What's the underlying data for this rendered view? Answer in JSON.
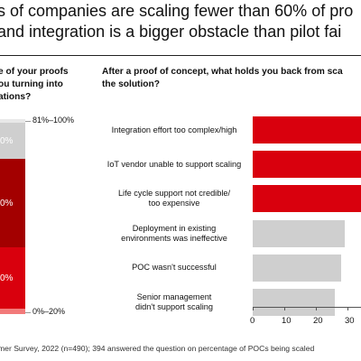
{
  "title": {
    "line1": "s of companies are scaling fewer than 60% of pro",
    "line2": "and integration is a bigger obstacle than pilot fai"
  },
  "left_panel": {
    "heading_lines": [
      "e of your proofs",
      "ou turning into",
      "ations?"
    ],
    "segment_labels": [
      "0%",
      "0%",
      "0%"
    ],
    "range_top": "81%–100%",
    "range_bottom": "0%–20%"
  },
  "right_panel": {
    "heading_lines": [
      "After a proof of concept, what holds you back from sca",
      "the solution?"
    ]
  },
  "colors": {
    "dark_red": "#a30000",
    "red": "#d9000d",
    "light_red": "#f27a7a",
    "gray": "#cfcfcf",
    "pale_gray": "#e8e8e8"
  },
  "chart_data": {
    "type": "bar",
    "orientation": "horizontal",
    "categories": [
      "Integration effort too complex/high",
      "IoT vendor unable to support scaling",
      "Life cycle support not credible/ too expensive",
      "Deployment in existing environments was ineffective",
      "POC wasn't successful",
      "Senior management didn't support scaling"
    ],
    "category_lines": [
      [
        "Integration effort too complex/high"
      ],
      [
        "IoT vendor unable to support scaling"
      ],
      [
        "Life cycle support not credible/",
        "too expensive"
      ],
      [
        "Deployment in existing",
        "environments was ineffective"
      ],
      [
        "POC wasn't successful"
      ],
      [
        "Senior management",
        "didn't support scaling"
      ]
    ],
    "values": [
      40,
      40,
      40,
      29,
      28,
      26
    ],
    "highlight": [
      true,
      true,
      true,
      false,
      false,
      false
    ],
    "xlim": [
      0,
      40
    ],
    "xticks": [
      0,
      10,
      20,
      30
    ],
    "xtick_labels": [
      "0",
      "10",
      "20",
      "30"
    ]
  },
  "source": "mer Survey, 2022 (n=490); 394 answered the question on percentage of POCs being scaled"
}
